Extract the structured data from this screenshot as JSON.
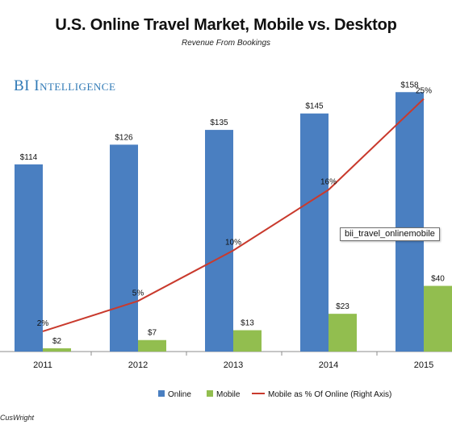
{
  "tooltip_text": "bii_travel_onlinemobile",
  "source_text": "CusWright",
  "colors": {
    "online": "#4a7fc1",
    "mobile": "#92be4f",
    "share_line": "#c93a2d",
    "brand": "#2f79b6"
  },
  "chart_data": {
    "type": "bar",
    "title": "U.S. Online Travel Market, Mobile vs. Desktop",
    "subtitle": "Revenue From Bookings",
    "brand": "BI Intelligence",
    "categories": [
      "2011",
      "2012",
      "2013",
      "2014",
      "2015"
    ],
    "series": [
      {
        "name": "Online",
        "type": "bar",
        "axis": "left",
        "values": [
          114,
          126,
          135,
          145,
          158
        ],
        "labels": [
          "$114",
          "$126",
          "$135",
          "$145",
          "$158"
        ]
      },
      {
        "name": "Mobile",
        "type": "bar",
        "axis": "left",
        "values": [
          2,
          7,
          13,
          23,
          40
        ],
        "labels": [
          "$2",
          "$7",
          "$13",
          "$23",
          "$40"
        ]
      },
      {
        "name": "Mobile as % Of Online (Right Axis)",
        "type": "line",
        "axis": "right",
        "values": [
          2,
          5,
          10,
          16,
          25
        ],
        "labels": [
          "2%",
          "5%",
          "10%",
          "16%",
          "25%"
        ]
      }
    ],
    "ylim": [
      0,
      165
    ],
    "y2lim": [
      0,
      26.8
    ],
    "legend_position": "bottom",
    "grid": false
  }
}
